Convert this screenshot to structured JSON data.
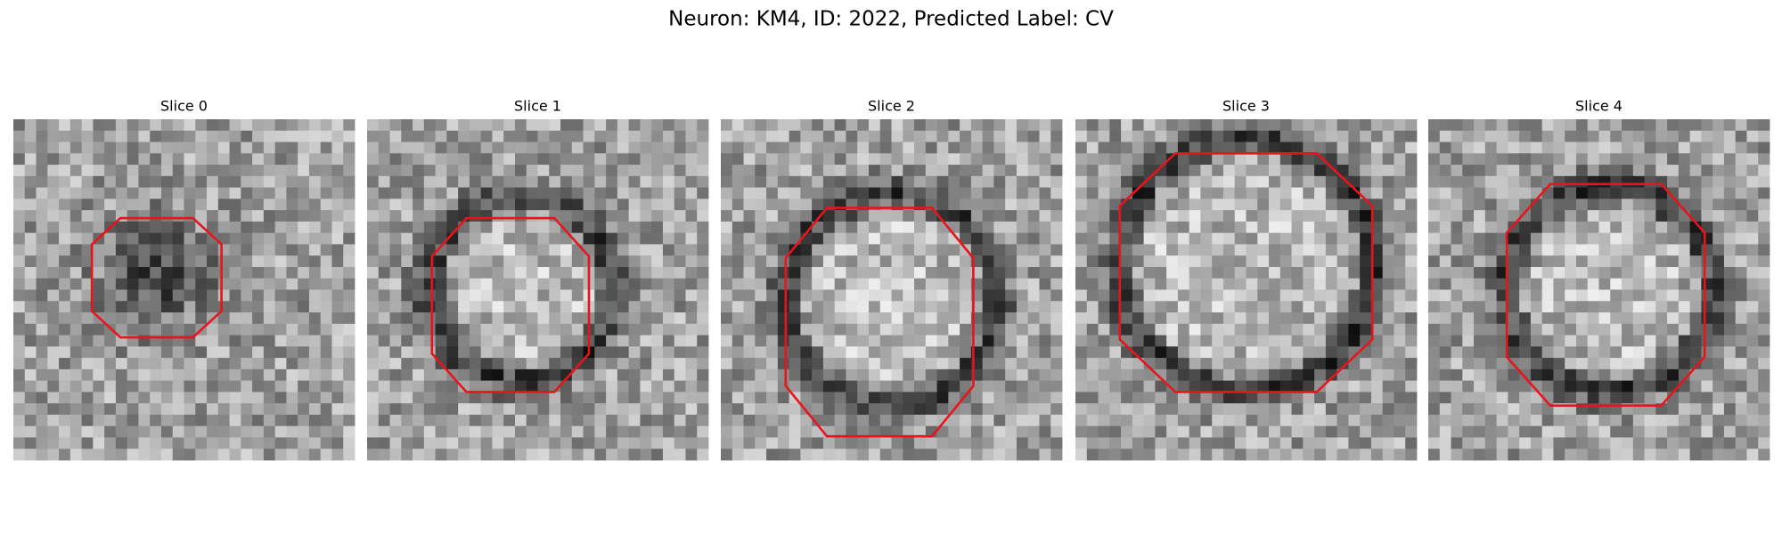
{
  "figure": {
    "title": "Neuron: KM4, ID: 2022, Predicted Label: CV",
    "panels": [
      {
        "title": "Slice 0"
      },
      {
        "title": "Slice 1"
      },
      {
        "title": "Slice 2"
      },
      {
        "title": "Slice 3"
      },
      {
        "title": "Slice 4"
      }
    ]
  }
}
